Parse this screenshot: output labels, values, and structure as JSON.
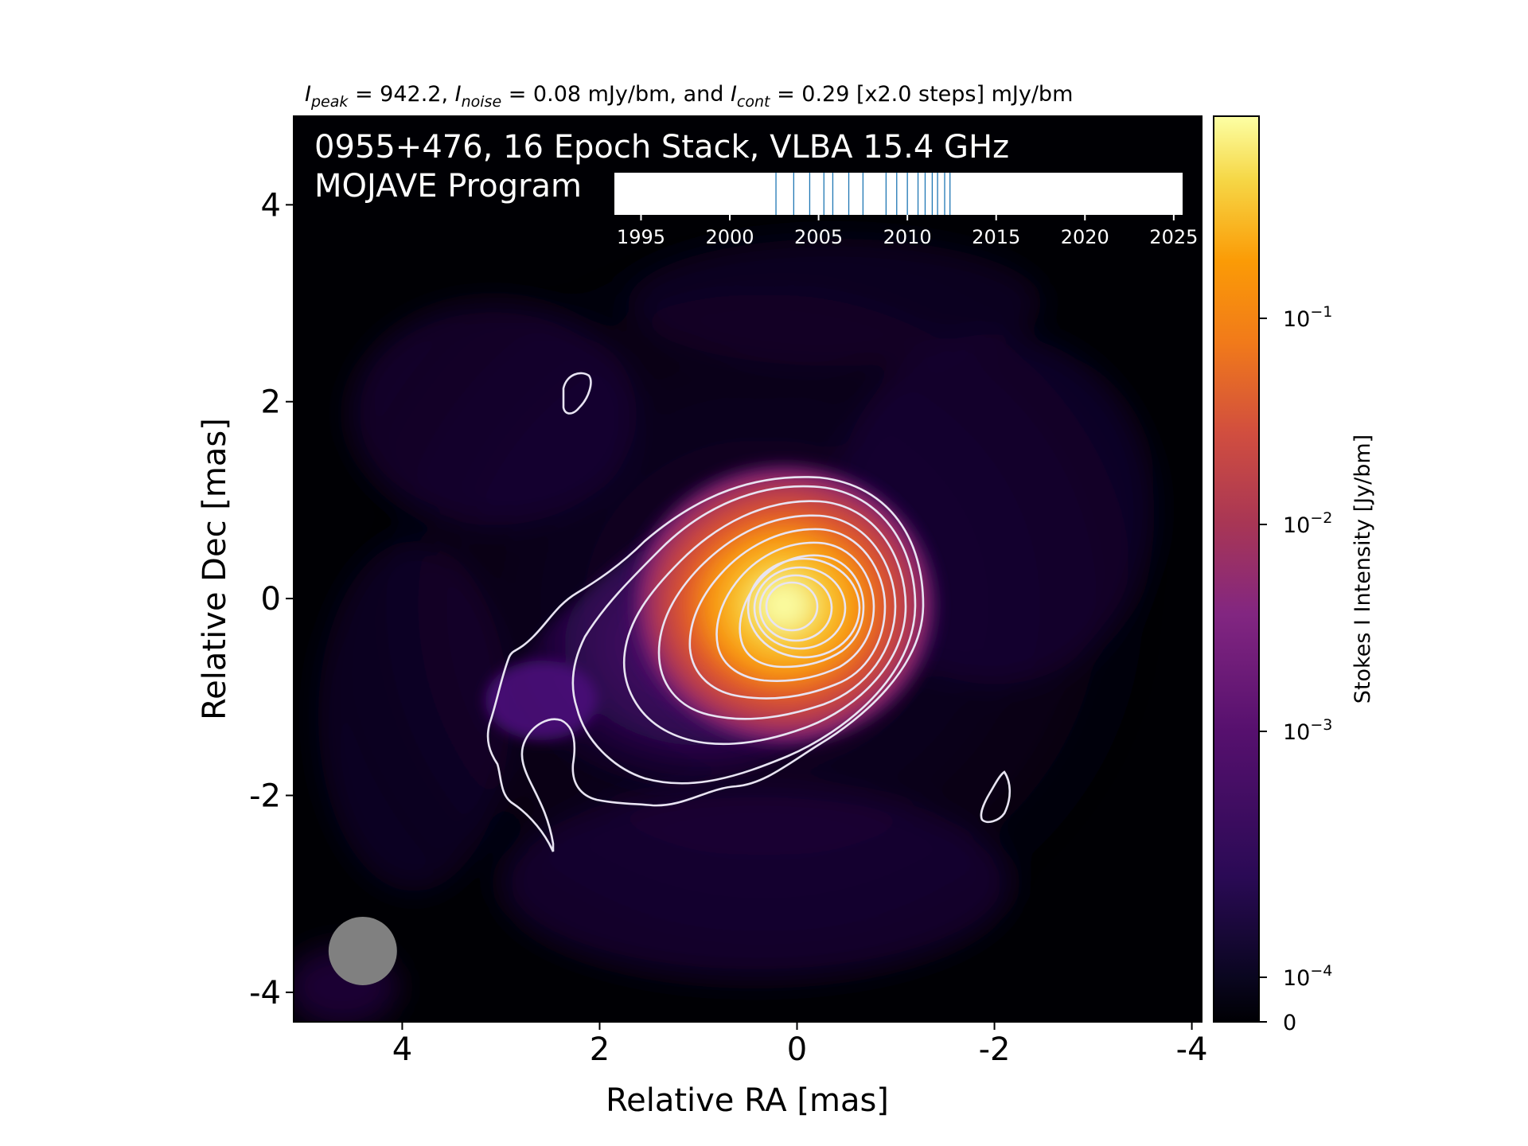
{
  "figure": {
    "header": {
      "i_peak_label": "I",
      "i_peak_sub": "peak",
      "i_peak_value": " = 942.2, ",
      "i_noise_label": "I",
      "i_noise_sub": "noise",
      "i_noise_value": " = 0.08 mJy/bm, and ",
      "i_cont_label": "I",
      "i_cont_sub": "cont",
      "i_cont_value": " = 0.29 [x2.0 steps] mJy/bm"
    },
    "overlay": {
      "line1": "0955+476, 16 Epoch Stack, VLBA 15.4 GHz",
      "line2": "MOJAVE Program"
    }
  },
  "colors": {
    "background": "#000004",
    "contour": "#e8e4f2",
    "beam": "#808080",
    "epoch_line": "#1f77b4"
  },
  "chart_data": {
    "type": "heatmap",
    "colormap": "inferno",
    "xlabel": "Relative RA [mas]",
    "ylabel": "Relative Dec [mas]",
    "xlim": [
      5.1,
      -4.1
    ],
    "ylim": [
      -4.3,
      4.9
    ],
    "x_ticks": [
      4,
      2,
      0,
      -2,
      -4
    ],
    "x_tick_labels": [
      "4",
      "2",
      "0",
      "-2",
      "-4"
    ],
    "y_ticks": [
      4,
      2,
      0,
      -2,
      -4
    ],
    "y_tick_labels": [
      "4",
      "2",
      "0",
      "-2",
      "-4"
    ],
    "core_position": [
      0.15,
      0.0
    ],
    "beam": {
      "x": 4.4,
      "y": -3.58,
      "diameter_mas": 0.7
    },
    "colorbar": {
      "label": "Stokes I Intensity [Jy/bm]",
      "scale": "log",
      "ticks": [
        {
          "value": 0.1,
          "base": "10",
          "exp": "−1"
        },
        {
          "value": 0.01,
          "base": "10",
          "exp": "−2"
        },
        {
          "value": 0.001,
          "base": "10",
          "exp": "−3"
        },
        {
          "value": 0.0001,
          "base": "10",
          "exp": "−4"
        },
        {
          "value": 0,
          "base": "0",
          "exp": ""
        }
      ]
    },
    "epochs": {
      "xlim": [
        1993.5,
        2025.5
      ],
      "ticks": [
        1995,
        2000,
        2005,
        2010,
        2015,
        2020,
        2025
      ],
      "tick_labels": [
        "1995",
        "2000",
        "2005",
        "2010",
        "2015",
        "2020",
        "2025"
      ],
      "dates": [
        2002.6,
        2003.6,
        2004.5,
        2005.3,
        2005.8,
        2006.7,
        2007.5,
        2008.8,
        2009.4,
        2010.0,
        2010.6,
        2011.0,
        2011.4,
        2011.7,
        2012.1,
        2012.4
      ]
    }
  }
}
